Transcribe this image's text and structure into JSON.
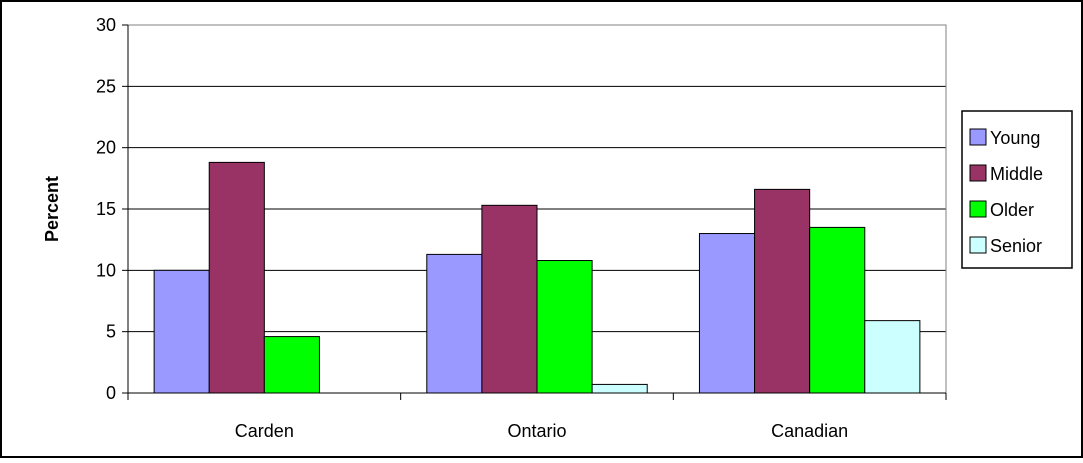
{
  "chart_data": {
    "type": "bar",
    "title": "",
    "xlabel": "",
    "ylabel": "Percent",
    "categories": [
      "Carden",
      "Ontario",
      "Canadian"
    ],
    "ylim": [
      0,
      30
    ],
    "yticks": [
      0,
      5,
      10,
      15,
      20,
      25,
      30
    ],
    "grid": true,
    "legend_position": "right",
    "series": [
      {
        "name": "Young",
        "color": "#9999ff",
        "values": [
          10.0,
          11.3,
          13.0
        ]
      },
      {
        "name": "Middle",
        "color": "#993366",
        "values": [
          18.8,
          15.3,
          16.6
        ]
      },
      {
        "name": "Older",
        "color": "#00ff00",
        "values": [
          4.6,
          10.8,
          13.5
        ]
      },
      {
        "name": "Senior",
        "color": "#ccffff",
        "values": [
          0.0,
          0.7,
          5.9
        ]
      }
    ]
  }
}
